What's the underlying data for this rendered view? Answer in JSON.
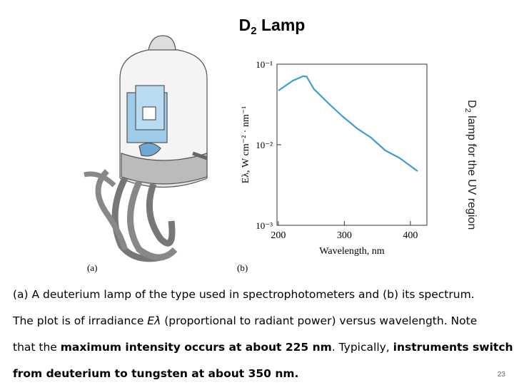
{
  "title": {
    "text": "D",
    "subscript": "2",
    "rest": " Lamp"
  },
  "side_label": {
    "text": "D",
    "subscript": "2",
    "rest": " lamp for the UV region"
  },
  "figure": {
    "panel_labels": [
      "(a)",
      "(b)"
    ],
    "spectrum": {
      "type": "line",
      "y_label": "Eλ, W cm⁻² · nm⁻¹",
      "x_label": "Wavelength, nm",
      "x": [
        200,
        222,
        238,
        243,
        254,
        276,
        297,
        319,
        340,
        362,
        384,
        411
      ],
      "values": [
        0.047,
        0.0625,
        0.071,
        0.07,
        0.049,
        0.0326,
        0.0226,
        0.016,
        0.0123,
        0.0085,
        0.0068,
        0.0047
      ],
      "xlim": [
        198,
        425
      ],
      "ylim": [
        0.001,
        0.1
      ],
      "log_y": true,
      "xticks": [
        200,
        300,
        400
      ],
      "yticks": [
        {
          "value": 0.001,
          "label": "10⁻³"
        },
        {
          "value": 0.01,
          "label": "10⁻²"
        },
        {
          "value": 0.1,
          "label": "10⁻¹"
        }
      ],
      "color": "#3d9bd6"
    }
  },
  "caption": [
    [
      {
        "text": "(a) A deuterium lamp of the type used in spectrophotometers and (b) its spectrum.",
        "bold": false
      }
    ],
    [
      {
        "text": "The plot is of irradiance ",
        "bold": false
      },
      {
        "text": "Eλ",
        "italic": true
      },
      {
        "text": " (proportional to radiant power) versus wavelength. Note",
        "bold": false
      }
    ],
    [
      {
        "text": "that the ",
        "bold": false
      },
      {
        "text": "maximum intensity occurs at about 225 nm",
        "bold": true
      },
      {
        "text": ". Typically, ",
        "bold": false
      },
      {
        "text": "instruments switch",
        "bold": true
      }
    ],
    [
      {
        "text": "from deuterium to tungsten at about 350 nm.",
        "bold": true
      }
    ]
  ],
  "page_number": "23"
}
